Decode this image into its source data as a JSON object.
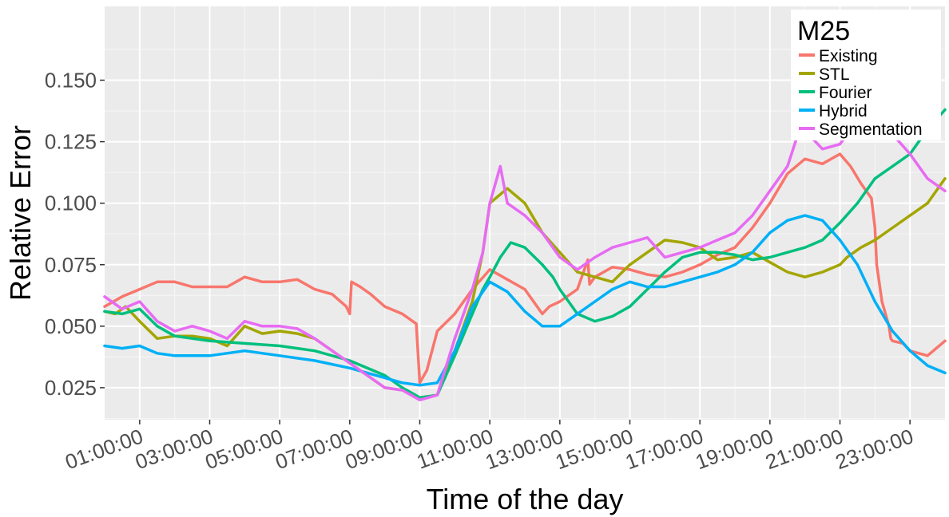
{
  "chart_data": {
    "type": "line",
    "title": "",
    "xlabel": "Time of the day",
    "ylabel": "Relative Error",
    "xlim": [
      0.0,
      24.0
    ],
    "ylim": [
      0.012,
      0.18
    ],
    "x_ticks": [
      1,
      3,
      5,
      7,
      9,
      11,
      13,
      15,
      17,
      19,
      21,
      23
    ],
    "x_tick_labels": [
      "01:00:00",
      "03:00:00",
      "05:00:00",
      "07:00:00",
      "09:00:00",
      "11:00:00",
      "13:00:00",
      "15:00:00",
      "17:00:00",
      "19:00:00",
      "21:00:00",
      "23:00:00"
    ],
    "y_ticks": [
      0.025,
      0.05,
      0.075,
      0.1,
      0.125,
      0.15
    ],
    "y_tick_labels": [
      "0.025",
      "0.050",
      "0.075",
      "0.100",
      "0.125",
      "0.150"
    ],
    "grid": true,
    "legend": {
      "title": "M25",
      "position": "top-right"
    },
    "x_unit": "hour of day",
    "series": [
      {
        "name": "Existing",
        "color": "#F8766D",
        "x": [
          0.0,
          0.25,
          0.5,
          1.0,
          1.5,
          2.0,
          2.5,
          3.0,
          3.5,
          4.0,
          4.5,
          5.0,
          5.5,
          6.0,
          6.5,
          6.9,
          7.0,
          7.05,
          7.3,
          7.6,
          8.0,
          8.5,
          8.9,
          9.0,
          9.2,
          9.5,
          10.0,
          10.5,
          11.0,
          11.5,
          12.0,
          12.5,
          12.7,
          13.0,
          13.5,
          13.8,
          13.85,
          14.0,
          14.5,
          15.0,
          15.5,
          16.0,
          16.5,
          17.0,
          17.5,
          18.0,
          18.5,
          19.0,
          19.5,
          20.0,
          20.5,
          21.0,
          21.3,
          21.6,
          21.9,
          22.0,
          22.05,
          22.2,
          22.4,
          22.45,
          22.5,
          22.8,
          23.0,
          23.5,
          24.0
        ],
        "y": [
          0.058,
          0.06,
          0.062,
          0.065,
          0.068,
          0.068,
          0.066,
          0.066,
          0.066,
          0.07,
          0.068,
          0.068,
          0.069,
          0.065,
          0.063,
          0.058,
          0.055,
          0.068,
          0.066,
          0.063,
          0.058,
          0.055,
          0.051,
          0.027,
          0.032,
          0.048,
          0.055,
          0.065,
          0.073,
          0.069,
          0.065,
          0.055,
          0.058,
          0.06,
          0.065,
          0.077,
          0.067,
          0.07,
          0.074,
          0.073,
          0.071,
          0.07,
          0.072,
          0.075,
          0.079,
          0.082,
          0.09,
          0.1,
          0.112,
          0.118,
          0.116,
          0.12,
          0.115,
          0.108,
          0.102,
          0.09,
          0.075,
          0.06,
          0.05,
          0.045,
          0.044,
          0.043,
          0.04,
          0.038,
          0.044
        ]
      },
      {
        "name": "STL",
        "color": "#A3A500",
        "x": [
          0.0,
          0.3,
          0.6,
          1.0,
          1.5,
          2.0,
          2.5,
          3.0,
          3.5,
          4.0,
          4.5,
          5.0,
          5.5,
          6.0,
          6.5,
          7.0,
          7.5,
          8.0,
          8.5,
          9.0,
          9.5,
          10.0,
          10.5,
          10.8,
          11.0,
          11.5,
          12.0,
          12.5,
          13.0,
          13.5,
          14.0,
          14.5,
          15.0,
          15.5,
          16.0,
          16.5,
          17.0,
          17.5,
          18.0,
          18.5,
          19.0,
          19.5,
          20.0,
          20.5,
          21.0,
          21.2,
          21.4,
          21.6,
          22.0,
          22.5,
          23.0,
          23.5,
          24.0
        ],
        "y": [
          0.056,
          0.055,
          0.058,
          0.052,
          0.045,
          0.046,
          0.046,
          0.045,
          0.042,
          0.05,
          0.047,
          0.048,
          0.047,
          0.045,
          0.04,
          0.035,
          0.03,
          0.025,
          0.024,
          0.021,
          0.022,
          0.04,
          0.06,
          0.08,
          0.1,
          0.106,
          0.1,
          0.088,
          0.08,
          0.072,
          0.07,
          0.068,
          0.075,
          0.08,
          0.085,
          0.084,
          0.082,
          0.077,
          0.078,
          0.08,
          0.076,
          0.072,
          0.07,
          0.072,
          0.075,
          0.078,
          0.08,
          0.082,
          0.085,
          0.09,
          0.095,
          0.1,
          0.11
        ]
      },
      {
        "name": "Fourier",
        "color": "#00BF7D",
        "x": [
          0.0,
          0.5,
          1.0,
          1.5,
          2.0,
          3.0,
          4.0,
          5.0,
          6.0,
          7.0,
          8.0,
          8.5,
          9.0,
          9.5,
          10.0,
          10.5,
          10.8,
          11.0,
          11.3,
          11.6,
          12.0,
          12.5,
          12.8,
          13.0,
          13.5,
          14.0,
          14.5,
          15.0,
          15.5,
          16.0,
          16.5,
          17.0,
          17.5,
          18.0,
          18.5,
          19.0,
          19.5,
          20.0,
          20.5,
          21.0,
          21.5,
          22.0,
          22.5,
          23.0,
          23.5,
          24.0
        ],
        "y": [
          0.056,
          0.055,
          0.057,
          0.05,
          0.046,
          0.044,
          0.043,
          0.042,
          0.04,
          0.036,
          0.03,
          0.025,
          0.021,
          0.022,
          0.038,
          0.055,
          0.065,
          0.07,
          0.078,
          0.084,
          0.082,
          0.075,
          0.07,
          0.065,
          0.055,
          0.052,
          0.054,
          0.058,
          0.065,
          0.072,
          0.078,
          0.08,
          0.08,
          0.079,
          0.077,
          0.078,
          0.08,
          0.082,
          0.085,
          0.092,
          0.1,
          0.11,
          0.115,
          0.12,
          0.13,
          0.138
        ]
      },
      {
        "name": "Hybrid",
        "color": "#00B0F6",
        "x": [
          0.0,
          0.5,
          1.0,
          1.5,
          2.0,
          3.0,
          4.0,
          5.0,
          6.0,
          7.0,
          8.0,
          8.5,
          9.0,
          9.5,
          10.0,
          10.5,
          11.0,
          11.5,
          12.0,
          12.5,
          13.0,
          13.5,
          14.0,
          14.5,
          15.0,
          15.5,
          16.0,
          16.5,
          17.0,
          17.5,
          18.0,
          18.5,
          19.0,
          19.5,
          20.0,
          20.5,
          21.0,
          21.5,
          22.0,
          22.5,
          23.0,
          23.5,
          24.0
        ],
        "y": [
          0.042,
          0.041,
          0.042,
          0.039,
          0.038,
          0.038,
          0.04,
          0.038,
          0.036,
          0.033,
          0.029,
          0.027,
          0.026,
          0.027,
          0.04,
          0.058,
          0.068,
          0.064,
          0.056,
          0.05,
          0.05,
          0.055,
          0.06,
          0.065,
          0.068,
          0.066,
          0.066,
          0.068,
          0.07,
          0.072,
          0.075,
          0.08,
          0.088,
          0.093,
          0.095,
          0.093,
          0.085,
          0.075,
          0.06,
          0.048,
          0.04,
          0.034,
          0.031
        ]
      },
      {
        "name": "Segmentation",
        "color": "#E76BF3",
        "x": [
          0.0,
          0.5,
          1.0,
          1.5,
          2.0,
          2.5,
          3.0,
          3.5,
          4.0,
          4.5,
          5.0,
          5.5,
          6.0,
          6.5,
          7.0,
          7.5,
          8.0,
          8.5,
          9.0,
          9.5,
          10.0,
          10.5,
          10.8,
          11.0,
          11.3,
          11.5,
          12.0,
          12.5,
          13.0,
          13.5,
          14.0,
          14.5,
          15.0,
          15.5,
          16.0,
          16.5,
          17.0,
          17.5,
          18.0,
          18.5,
          19.0,
          19.5,
          19.8,
          20.0,
          20.1,
          20.5,
          21.0,
          21.3,
          21.5,
          22.0,
          22.5,
          23.0,
          23.5,
          24.0
        ],
        "y": [
          0.062,
          0.057,
          0.06,
          0.052,
          0.048,
          0.05,
          0.048,
          0.045,
          0.052,
          0.05,
          0.05,
          0.049,
          0.045,
          0.04,
          0.035,
          0.03,
          0.025,
          0.024,
          0.02,
          0.022,
          0.045,
          0.065,
          0.08,
          0.1,
          0.115,
          0.1,
          0.095,
          0.088,
          0.078,
          0.073,
          0.078,
          0.082,
          0.084,
          0.086,
          0.078,
          0.08,
          0.082,
          0.085,
          0.088,
          0.095,
          0.105,
          0.115,
          0.128,
          0.133,
          0.128,
          0.122,
          0.124,
          0.13,
          0.167,
          0.132,
          0.128,
          0.12,
          0.11,
          0.105
        ]
      }
    ]
  }
}
